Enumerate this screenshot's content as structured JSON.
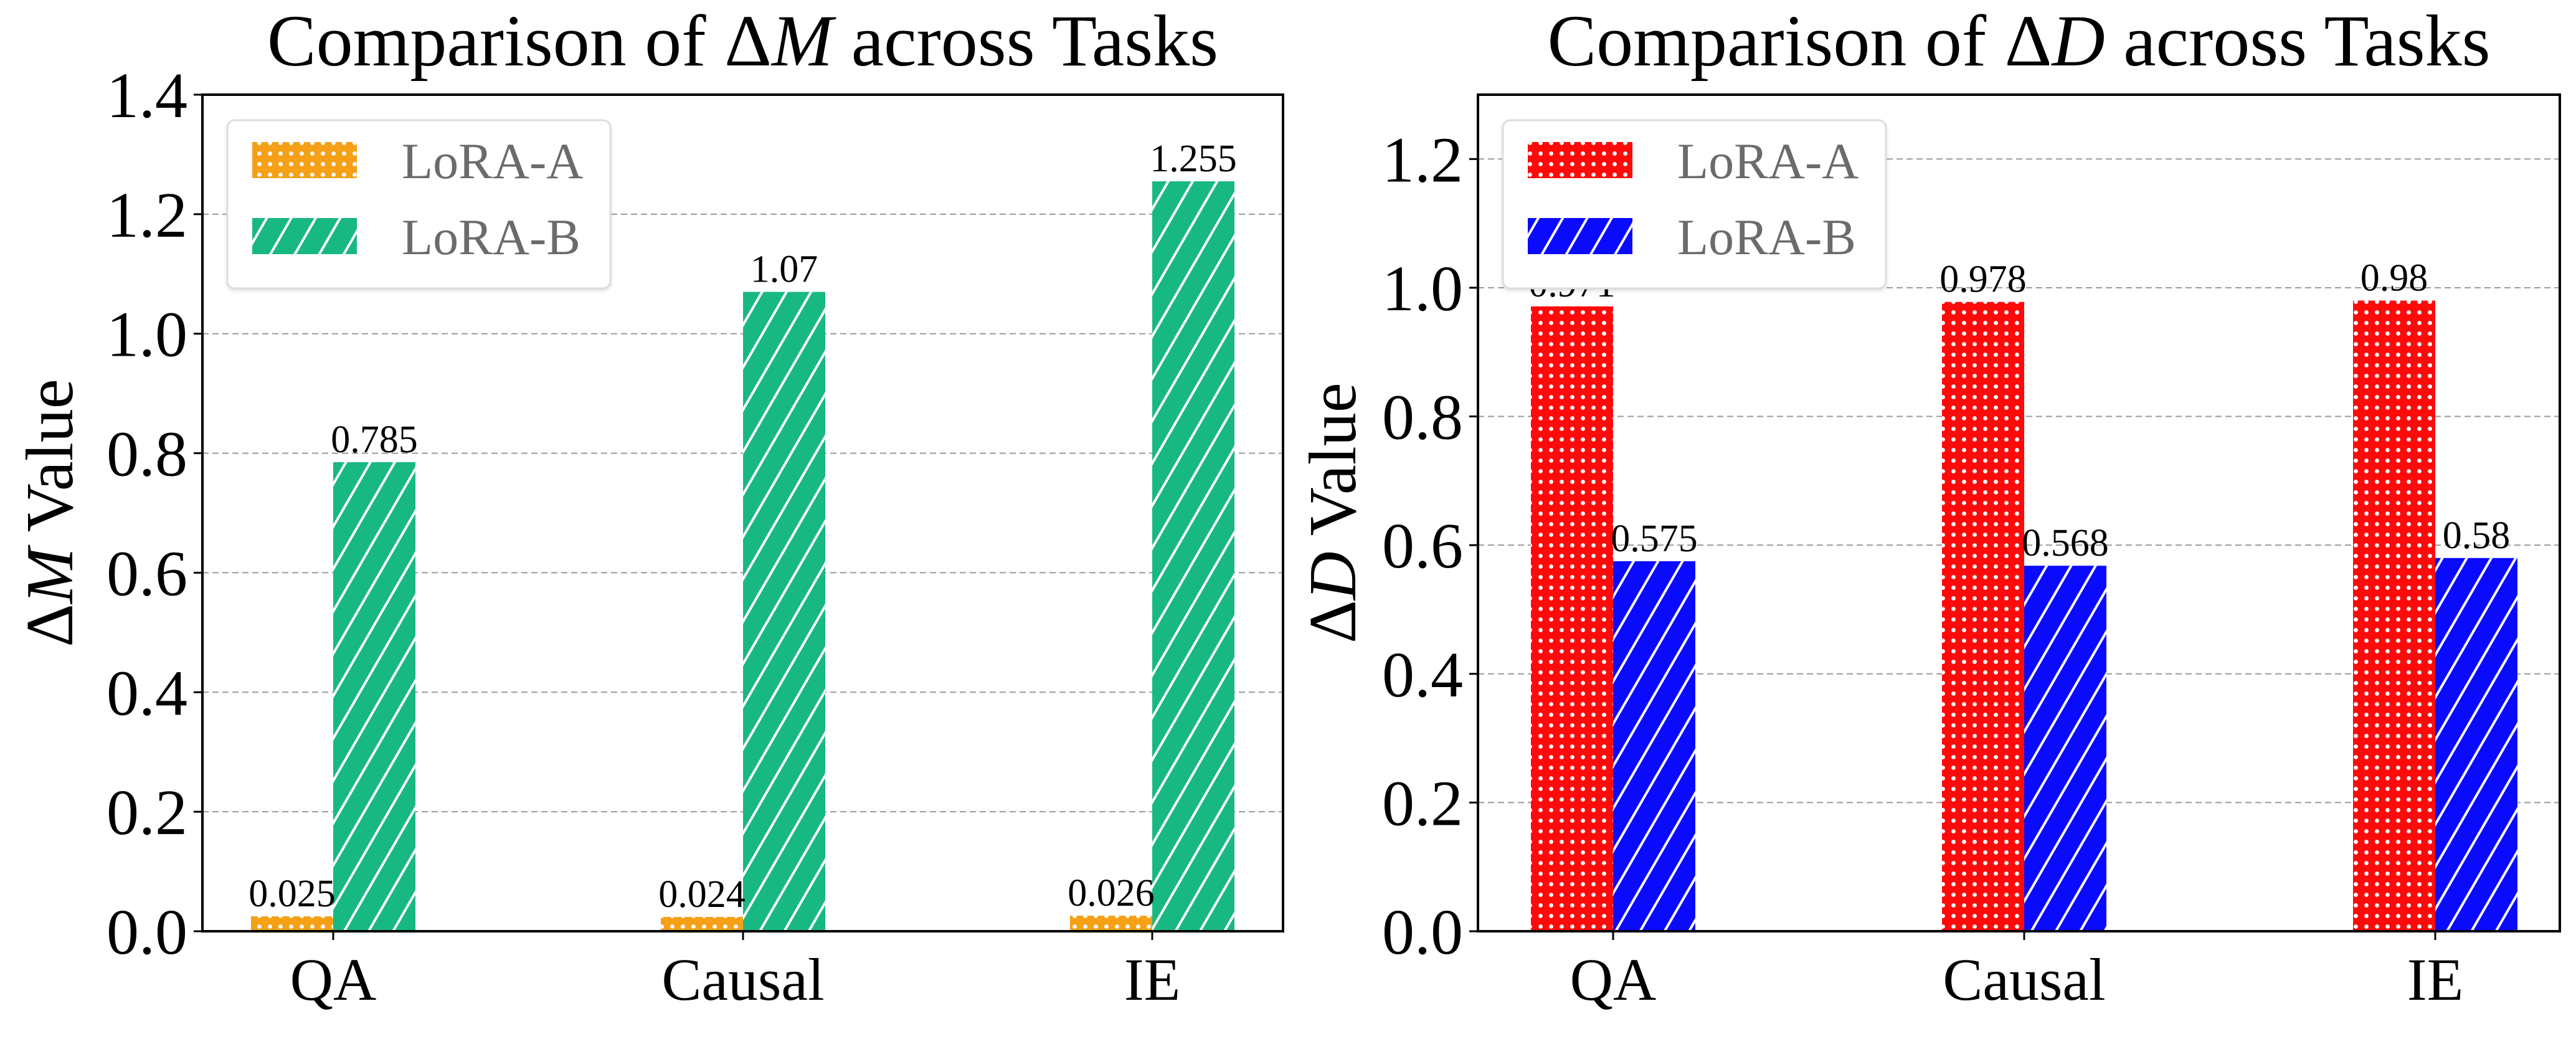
{
  "chart_data": [
    {
      "type": "bar",
      "title_parts": [
        "Comparison of ",
        "Δ",
        "M",
        " across Tasks"
      ],
      "title": "Comparison of ΔM across Tasks",
      "xlabel": "",
      "ylabel_parts": [
        "Δ",
        "M",
        " Value"
      ],
      "ylabel": "ΔM Value",
      "categories": [
        "QA",
        "Causal",
        "IE"
      ],
      "ylim": [
        0,
        1.4
      ],
      "yticks": [
        0.0,
        0.2,
        0.4,
        0.6,
        0.8,
        1.0,
        1.2,
        1.4
      ],
      "ytick_labels": [
        "0.0",
        "0.2",
        "0.4",
        "0.6",
        "0.8",
        "1.0",
        "1.2",
        "1.4"
      ],
      "grid": "y, dashed",
      "legend_position": "top-left",
      "series": [
        {
          "name": "LoRA-A",
          "values": [
            0.025,
            0.024,
            0.026
          ],
          "labels": [
            "0.025",
            "0.024",
            "0.026"
          ],
          "color": "#f5a016",
          "hatch": "dots"
        },
        {
          "name": "LoRA-B",
          "values": [
            0.785,
            1.07,
            1.255
          ],
          "labels": [
            "0.785",
            "1.07",
            "1.255"
          ],
          "color": "#18b882",
          "hatch": "diagonal"
        }
      ]
    },
    {
      "type": "bar",
      "title_parts": [
        "Comparison of ",
        "Δ",
        "D",
        " across Tasks"
      ],
      "title": "Comparison of ΔD across Tasks",
      "xlabel": "",
      "ylabel_parts": [
        "Δ",
        "D",
        " Value"
      ],
      "ylabel": "ΔD Value",
      "categories": [
        "QA",
        "Causal",
        "IE"
      ],
      "ylim": [
        0,
        1.3
      ],
      "yticks": [
        0.0,
        0.2,
        0.4,
        0.6,
        0.8,
        1.0,
        1.2
      ],
      "ytick_labels": [
        "0.0",
        "0.2",
        "0.4",
        "0.6",
        "0.8",
        "1.0",
        "1.2"
      ],
      "grid": "y, dashed",
      "legend_position": "top-left",
      "series": [
        {
          "name": "LoRA-A",
          "values": [
            0.971,
            0.978,
            0.98
          ],
          "labels": [
            "0.971",
            "0.978",
            "0.98"
          ],
          "color": "#ff0a0a",
          "hatch": "dots"
        },
        {
          "name": "LoRA-B",
          "values": [
            0.575,
            0.568,
            0.58
          ],
          "labels": [
            "0.575",
            "0.568",
            "0.58"
          ],
          "color": "#0a0aff",
          "hatch": "diagonal"
        }
      ]
    }
  ]
}
